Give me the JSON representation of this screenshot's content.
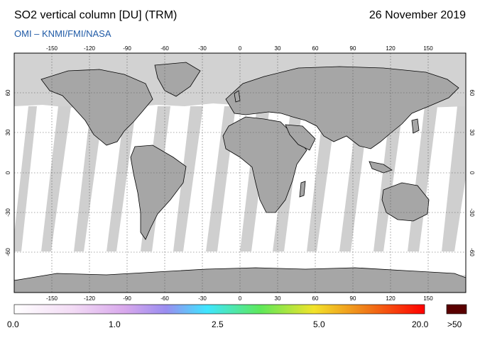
{
  "header": {
    "title": "SO2 vertical column [DU] (TRM)",
    "date": "26 November 2019",
    "credit": "OMI  –  KNMI/FMI/NASA"
  },
  "map": {
    "projection": "equirectangular",
    "lon_range": [
      -180,
      180
    ],
    "lat_range": [
      -90,
      90
    ],
    "lon_ticks": [
      "-150",
      "-120",
      "-90",
      "-60",
      "-30",
      "0",
      "30",
      "60",
      "90",
      "120",
      "150"
    ],
    "lat_ticks": [
      "60",
      "30",
      "0",
      "-30",
      "-60"
    ],
    "colors": {
      "land": "#a6a6a6",
      "no_data": "#d2d2d2",
      "gap_swath": "#cfcfcf",
      "background": "#ffffff",
      "coastline": "#000000",
      "grid": "#555555"
    }
  },
  "colorbar": {
    "labels": [
      "0.0",
      "1.0",
      "2.5",
      "5.0",
      "20.0",
      ">50"
    ],
    "colors": [
      "#ffffff",
      "#f3dcf5",
      "#d8a8ec",
      "#9a8df0",
      "#3fe6ff",
      "#5ee85a",
      "#f2e32a",
      "#f07a18",
      "#ff0000"
    ],
    "overflow_color": "#5a0000"
  }
}
